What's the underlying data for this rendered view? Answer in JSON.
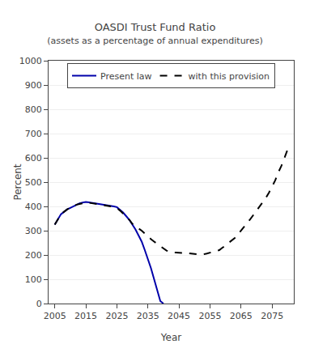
{
  "chart_data": {
    "type": "line",
    "title": "OASDI Trust Fund Ratio",
    "subtitle": "(assets as a percentage of annual expenditures)",
    "x_label": "Year",
    "y_label": "Percent",
    "x": [
      2005,
      2006,
      2007,
      2008,
      2009,
      2010,
      2011,
      2012,
      2013,
      2014,
      2015,
      2016,
      2017,
      2018,
      2019,
      2020,
      2021,
      2022,
      2023,
      2024,
      2025,
      2026,
      2027,
      2028,
      2029,
      2030,
      2031,
      2032,
      2033,
      2034,
      2035,
      2036,
      2037,
      2038,
      2039,
      2040,
      2041,
      2042,
      2043,
      2044,
      2045,
      2046,
      2047,
      2048,
      2049,
      2050,
      2051,
      2052,
      2053,
      2054,
      2055,
      2056,
      2057,
      2058,
      2059,
      2060,
      2061,
      2062,
      2063,
      2064,
      2065,
      2066,
      2067,
      2068,
      2069,
      2070,
      2071,
      2072,
      2073,
      2074,
      2075,
      2076,
      2077,
      2078,
      2079,
      2080
    ],
    "series": [
      {
        "name": "Present law",
        "color": "#0000AA",
        "line_style": "solid",
        "values": [
          325,
          346,
          368,
          378,
          388,
          394,
          400,
          407,
          413,
          416,
          418,
          417,
          415,
          413,
          412,
          410,
          408,
          405,
          402,
          400,
          397,
          386,
          375,
          360,
          345,
          325,
          305,
          280,
          255,
          220,
          185,
          145,
          100,
          55,
          10,
          0,
          null,
          null,
          null,
          null,
          null,
          null,
          null,
          null,
          null,
          null,
          null,
          null,
          null,
          null,
          null,
          null,
          null,
          null,
          null,
          null,
          null,
          null,
          null,
          null,
          null,
          null,
          null,
          null,
          null,
          null,
          null,
          null,
          null,
          null,
          null,
          null,
          null,
          null,
          null,
          null
        ]
      },
      {
        "name": "with this provision",
        "color": "#000000",
        "line_style": "dashed",
        "values": [
          325,
          346,
          368,
          378,
          388,
          394,
          400,
          407,
          410,
          413,
          416,
          415,
          413,
          411,
          410,
          408,
          406,
          403,
          400,
          397,
          393,
          383,
          372,
          358,
          345,
          328,
          318,
          310,
          300,
          288,
          275,
          265,
          255,
          245,
          235,
          226,
          218,
          214,
          210,
          210,
          210,
          209,
          208,
          207,
          205,
          204,
          203,
          203,
          203,
          206,
          210,
          213,
          215,
          220,
          230,
          238,
          250,
          260,
          270,
          285,
          300,
          315,
          330,
          348,
          365,
          382,
          400,
          417,
          435,
          457,
          480,
          507,
          540,
          567,
          600,
          634
        ]
      }
    ],
    "xlim": [
      2003,
      2082
    ],
    "xticks": [
      2005,
      2015,
      2025,
      2035,
      2045,
      2055,
      2065,
      2075
    ],
    "ylim": [
      0,
      1000
    ],
    "yticks": [
      0,
      100,
      200,
      300,
      400,
      500,
      600,
      700,
      800,
      900,
      1000
    ],
    "grid": true,
    "legend": "top"
  }
}
